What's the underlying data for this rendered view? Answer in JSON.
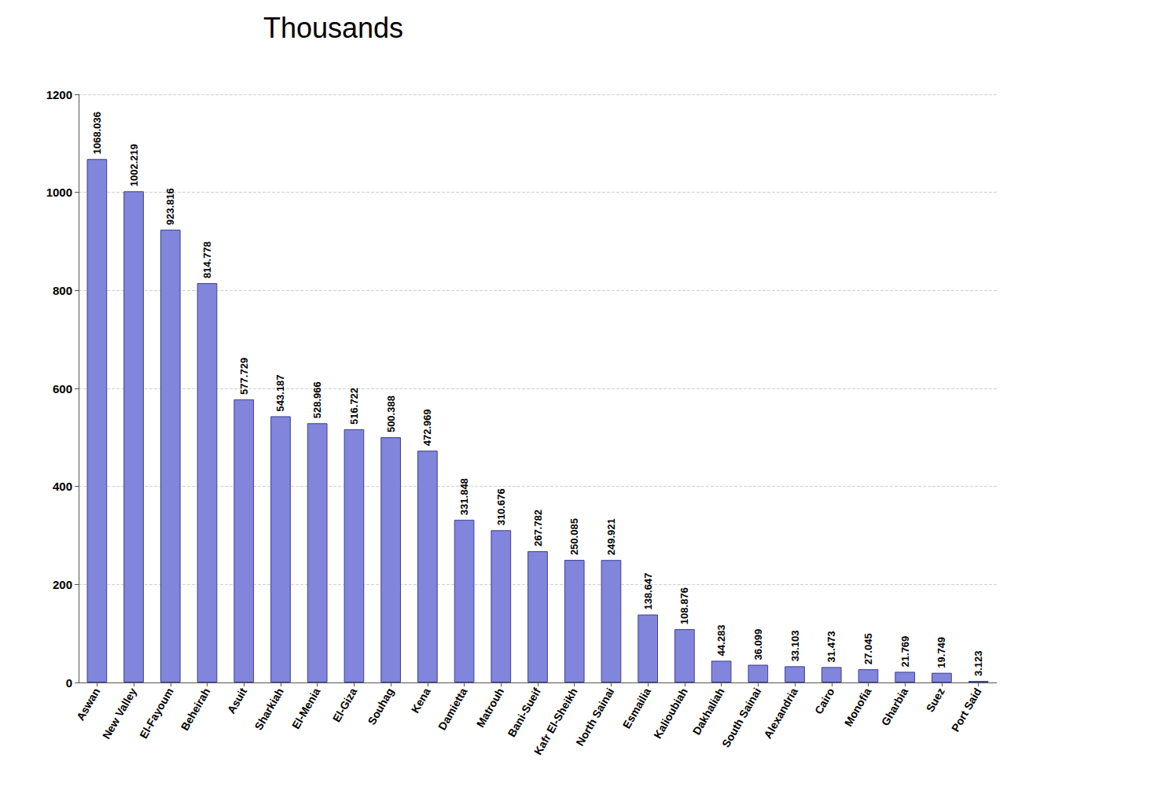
{
  "chart_data": {
    "type": "bar",
    "title": "Thousands",
    "categories": [
      "Aswan",
      "New Valley",
      "El-Fayoum",
      "Beheirah",
      "Asuit",
      "Sharkiah",
      "El-Menia",
      "El-Giza",
      "Souhag",
      "Kena",
      "Damietta",
      "Matrouh",
      "Bani-Sueif",
      "Kafr El-Sheikh",
      "North Sainai",
      "Esmailia",
      "Kalioubiah",
      "Dakhaliah",
      "South Sainai",
      "Alexandria",
      "Cairo",
      "Monofia",
      "Gharbia",
      "Suez",
      "Port Said"
    ],
    "values": [
      1068.036,
      1002.219,
      923.816,
      814.778,
      577.729,
      543.187,
      528.966,
      516.722,
      500.388,
      472.969,
      331.848,
      310.676,
      267.782,
      250.085,
      249.921,
      138.647,
      108.876,
      44.283,
      36.099,
      33.103,
      31.473,
      27.045,
      21.769,
      19.749,
      3.123
    ],
    "color": "#8185dc",
    "ylim": [
      0,
      1200
    ],
    "yticks": [
      0,
      200,
      400,
      600,
      800,
      1000,
      1200
    ],
    "grid": true,
    "data_labels": true
  }
}
